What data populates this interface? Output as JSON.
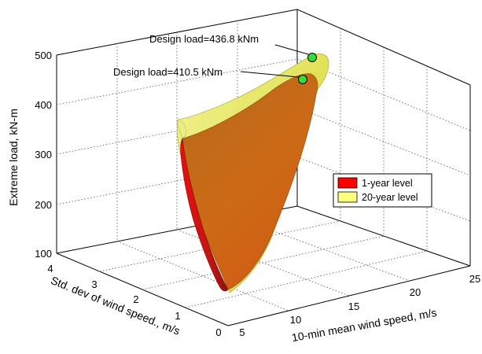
{
  "chart_data": {
    "type": "surface3d",
    "title": "",
    "xlabel": "10-min mean wind speed, m/s",
    "ylabel": "Std. dev of wind speed., m/s",
    "zlabel": "Extreme load, kN-m",
    "xlim": [
      5,
      25
    ],
    "ylim": [
      0,
      4
    ],
    "zlim": [
      100,
      500
    ],
    "xticks": [
      "5",
      "10",
      "15",
      "20",
      "25"
    ],
    "yticks": [
      "0",
      "1",
      "2",
      "3",
      "4"
    ],
    "zticks": [
      "100",
      "200",
      "300",
      "400",
      "500"
    ],
    "grid": true,
    "legend": {
      "position": "right",
      "entries": [
        {
          "name": "1-year level",
          "color": "#ff0000"
        },
        {
          "name": "20-year level",
          "color": "#ffff80"
        }
      ]
    },
    "series": [
      {
        "name": "1-year level",
        "color": "#e8241a",
        "design_point": {
          "x": 13.5,
          "y": 3.6,
          "z": 410.5
        }
      },
      {
        "name": "20-year level",
        "color": "#e8e860",
        "design_point": {
          "x": 14.3,
          "y": 3.8,
          "z": 436.8
        }
      }
    ],
    "annotations": [
      {
        "text": "Design load=436.8 kNm",
        "series": "20-year level"
      },
      {
        "text": "Design load=410.5 kNm",
        "series": "1-year level"
      }
    ]
  }
}
